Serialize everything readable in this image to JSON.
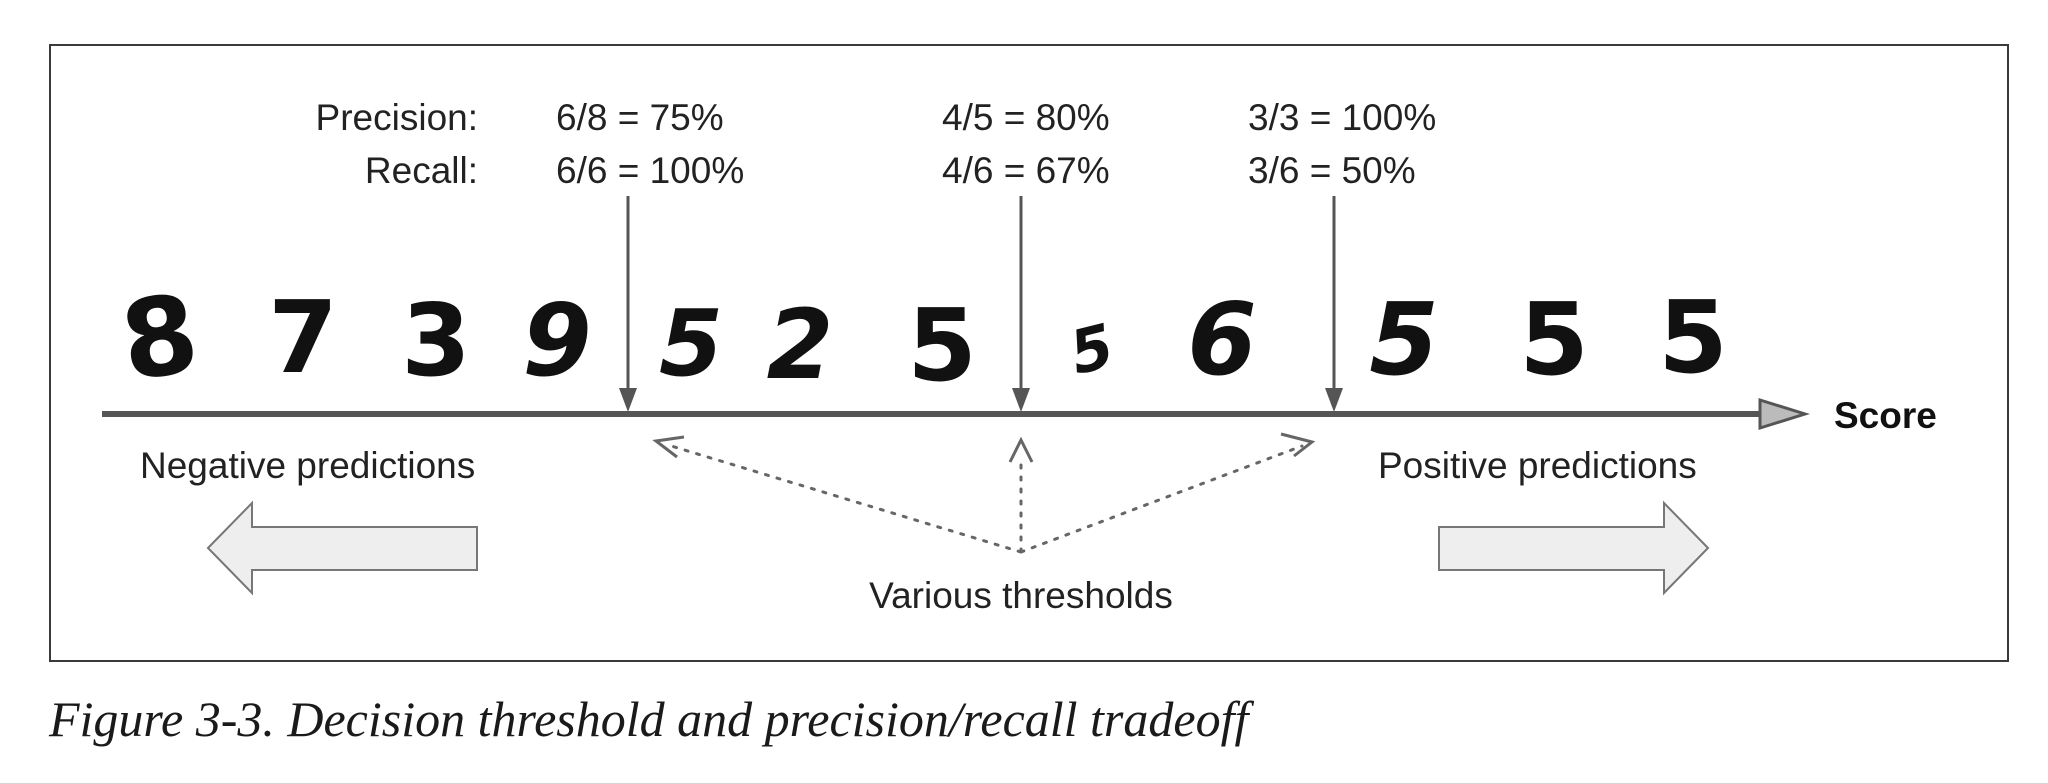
{
  "precision_label": "Precision:",
  "recall_label": "Recall:",
  "thresholds": [
    {
      "precision": "6/8 = 75%",
      "recall": "6/6 = 100%"
    },
    {
      "precision": "4/5 = 80%",
      "recall": "4/6 = 67%"
    },
    {
      "precision": "3/3 = 100%",
      "recall": "3/6 = 50%"
    }
  ],
  "digits": [
    "8",
    "7",
    "3",
    "9",
    "5",
    "2",
    "5",
    "5",
    "6",
    "5",
    "5",
    "5"
  ],
  "axis_label": "Score",
  "negative_label": "Negative predictions",
  "positive_label": "Positive predictions",
  "thresholds_label": "Various thresholds",
  "caption": "Figure 3-3. Decision threshold and precision/recall tradeoff",
  "colors": {
    "line": "#555555",
    "arrow_fill": "#eeeeee",
    "arrow_stroke": "#777777"
  }
}
